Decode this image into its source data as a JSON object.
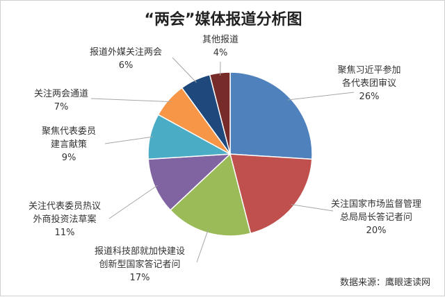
{
  "chart_data": {
    "type": "pie",
    "title": "“两会”媒体报道分析图",
    "source": "数据来源：鹰眼速读网",
    "start_angle_deg": 0,
    "direction": "clockwise",
    "slices": [
      {
        "lines": [
          "聚焦习近平参加",
          "各代表团审议"
        ],
        "pct_label": "26%",
        "value": 26,
        "color": "#4f81bd"
      },
      {
        "lines": [
          "关注国家市场监督管理",
          "总局局长答记者问"
        ],
        "pct_label": "20%",
        "value": 20,
        "color": "#c0504d"
      },
      {
        "lines": [
          "报道科技部就加快建设",
          "创新型国家答记者问"
        ],
        "pct_label": "17%",
        "value": 17,
        "color": "#9bbb59"
      },
      {
        "lines": [
          "关注代表委员热议",
          "外商投资法草案"
        ],
        "pct_label": "11%",
        "value": 11,
        "color": "#8064a2"
      },
      {
        "lines": [
          "聚焦代表委员",
          "建言献策"
        ],
        "pct_label": "9%",
        "value": 9,
        "color": "#4bacc6"
      },
      {
        "lines": [
          "关注两会通道"
        ],
        "pct_label": "7%",
        "value": 7,
        "color": "#f79646"
      },
      {
        "lines": [
          "报道外媒关注两会"
        ],
        "pct_label": "6%",
        "value": 6,
        "color": "#1f497d"
      },
      {
        "lines": [
          "其他报道"
        ],
        "pct_label": "4%",
        "value": 4,
        "color": "#772c2a"
      }
    ]
  }
}
